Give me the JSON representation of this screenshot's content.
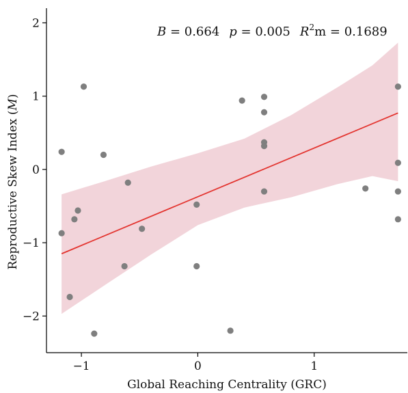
{
  "chart_data": {
    "type": "scatter",
    "xlabel": "Global Reaching Centrality (GRC)",
    "ylabel": {
      "text": "Reproductive Skew Index (",
      "italic": "M",
      "suffix": ")"
    },
    "xlim": [
      -1.3,
      1.8
    ],
    "ylim": [
      -2.5,
      2.2
    ],
    "x_ticks": [
      {
        "value": -1,
        "label": "−1"
      },
      {
        "value": 0,
        "label": "0"
      },
      {
        "value": 1,
        "label": "1"
      }
    ],
    "y_ticks": [
      {
        "value": -2,
        "label": "−2"
      },
      {
        "value": -1,
        "label": "−1"
      },
      {
        "value": 0,
        "label": "0"
      },
      {
        "value": 1,
        "label": "1"
      },
      {
        "value": 2,
        "label": "2"
      }
    ],
    "grid": false,
    "annotation": {
      "B_label": "B",
      "B_value": " = 0.664",
      "p_label": "p",
      "p_value": " = 0.005",
      "R_label": "R",
      "R_sup": "2",
      "R_value": "m = 0.1689"
    },
    "points": [
      {
        "x": -1.17,
        "y": 0.24
      },
      {
        "x": -1.17,
        "y": -0.87
      },
      {
        "x": -1.1,
        "y": -1.74
      },
      {
        "x": -1.06,
        "y": -0.68
      },
      {
        "x": -1.03,
        "y": -0.56
      },
      {
        "x": -0.98,
        "y": 1.13
      },
      {
        "x": -0.89,
        "y": -2.24
      },
      {
        "x": -0.81,
        "y": 0.2
      },
      {
        "x": -0.6,
        "y": -0.18
      },
      {
        "x": -0.63,
        "y": -1.32
      },
      {
        "x": -0.48,
        "y": -0.81
      },
      {
        "x": -0.01,
        "y": -0.48
      },
      {
        "x": -0.01,
        "y": -1.32
      },
      {
        "x": 0.28,
        "y": -2.2
      },
      {
        "x": 0.38,
        "y": 0.94
      },
      {
        "x": 0.57,
        "y": 0.99
      },
      {
        "x": 0.57,
        "y": 0.78
      },
      {
        "x": 0.57,
        "y": 0.37
      },
      {
        "x": 0.57,
        "y": 0.32
      },
      {
        "x": 0.57,
        "y": -0.3
      },
      {
        "x": 1.44,
        "y": -0.26
      },
      {
        "x": 1.72,
        "y": 1.13
      },
      {
        "x": 1.72,
        "y": 0.09
      },
      {
        "x": 1.72,
        "y": -0.3
      },
      {
        "x": 1.72,
        "y": -0.68
      }
    ],
    "fit_line": {
      "x": [
        -1.17,
        1.72
      ],
      "y": [
        -1.15,
        0.77
      ],
      "color": "#e3342f"
    },
    "confidence_band": {
      "x": [
        -1.17,
        -0.8,
        -0.4,
        0.0,
        0.4,
        0.8,
        1.2,
        1.5,
        1.72
      ],
      "upper": [
        -0.34,
        -0.16,
        0.04,
        0.22,
        0.42,
        0.74,
        1.12,
        1.42,
        1.73
      ],
      "lower": [
        -1.97,
        -1.58,
        -1.16,
        -0.76,
        -0.52,
        -0.38,
        -0.2,
        -0.09,
        -0.16
      ],
      "color": "#f2d4da"
    },
    "point_color": "#7f7f7f"
  }
}
